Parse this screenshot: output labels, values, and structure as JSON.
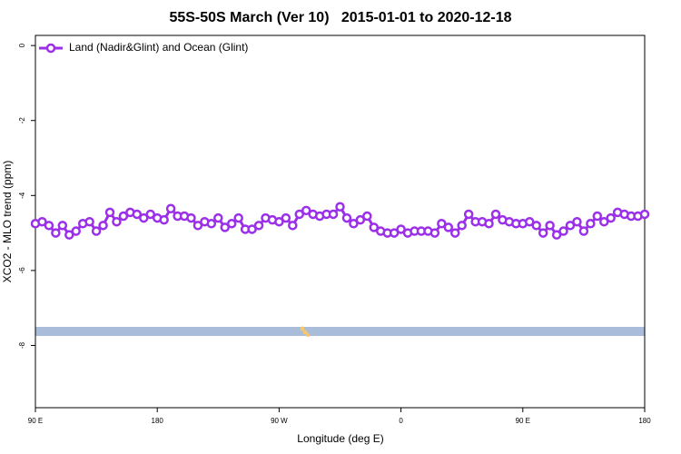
{
  "chart_data": {
    "type": "line",
    "title": "55S-50S March (Ver 10)   2015-01-01 to 2020-12-18",
    "x_label": "Longitude (deg E)",
    "y_label": "XCO2 - MLO trend (ppm)",
    "x": [
      90,
      95,
      100,
      105,
      110,
      115,
      120,
      125,
      130,
      135,
      140,
      145,
      150,
      155,
      160,
      165,
      170,
      175,
      180,
      185,
      190,
      195,
      200,
      205,
      210,
      215,
      220,
      225,
      230,
      235,
      240,
      245,
      250,
      255,
      260,
      265,
      270,
      275,
      280,
      285,
      290,
      295,
      300,
      305,
      310,
      315,
      320,
      325,
      330,
      335,
      340,
      345,
      350,
      355,
      360,
      365,
      370,
      375,
      380,
      385,
      390,
      395,
      400,
      405,
      410,
      415,
      420,
      425,
      430,
      435,
      440,
      445,
      450,
      455,
      460,
      465,
      470,
      475,
      480,
      485,
      490,
      495,
      500,
      505,
      510,
      515,
      520,
      525,
      530,
      535,
      540
    ],
    "series": [
      {
        "name": "Land (Nadir&Glint) and Ocean (Glint)",
        "color": "#9b30e8",
        "values": [
          -4.75,
          -4.7,
          -4.8,
          -5.0,
          -4.8,
          -5.05,
          -4.95,
          -4.75,
          -4.7,
          -4.95,
          -4.8,
          -4.45,
          -4.7,
          -4.55,
          -4.45,
          -4.5,
          -4.6,
          -4.5,
          -4.6,
          -4.65,
          -4.35,
          -4.55,
          -4.55,
          -4.6,
          -4.8,
          -4.7,
          -4.75,
          -4.6,
          -4.85,
          -4.75,
          -4.6,
          -4.9,
          -4.9,
          -4.8,
          -4.6,
          -4.65,
          -4.7,
          -4.6,
          -4.8,
          -4.5,
          -4.4,
          -4.5,
          -4.55,
          -4.5,
          -4.5,
          -4.3,
          -4.6,
          -4.75,
          -4.65,
          -4.55,
          -4.85,
          -4.95,
          -5.0,
          -5.0,
          -4.9,
          -5.0,
          -4.95,
          -4.95,
          -4.95,
          -5.0,
          -4.75,
          -4.85,
          -5.0,
          -4.8,
          -4.5,
          -4.7,
          -4.7,
          -4.75,
          -4.5,
          -4.65,
          -4.7,
          -4.75,
          -4.75,
          -4.7,
          -4.8,
          -5.0,
          -4.8,
          -5.05,
          -4.95,
          -4.8,
          -4.7,
          -4.95,
          -4.75,
          -4.55,
          -4.7,
          -4.6,
          -4.45,
          -4.5,
          -4.55,
          -4.55,
          -4.5
        ]
      }
    ],
    "xlim": [
      90,
      540
    ],
    "xticks": [
      {
        "value": 90,
        "label": "90 E"
      },
      180,
      {
        "value": 270,
        "label": "90 W"
      },
      {
        "value": 360,
        "label": "0"
      },
      {
        "value": 450,
        "label": "90 E"
      },
      {
        "value": 540,
        "label": "180"
      }
    ],
    "ylim": [
      -9.66,
      0.27
    ],
    "yticks": [
      0,
      -2,
      -4,
      -6,
      -8
    ],
    "legend": "top-left",
    "grid": false
  }
}
